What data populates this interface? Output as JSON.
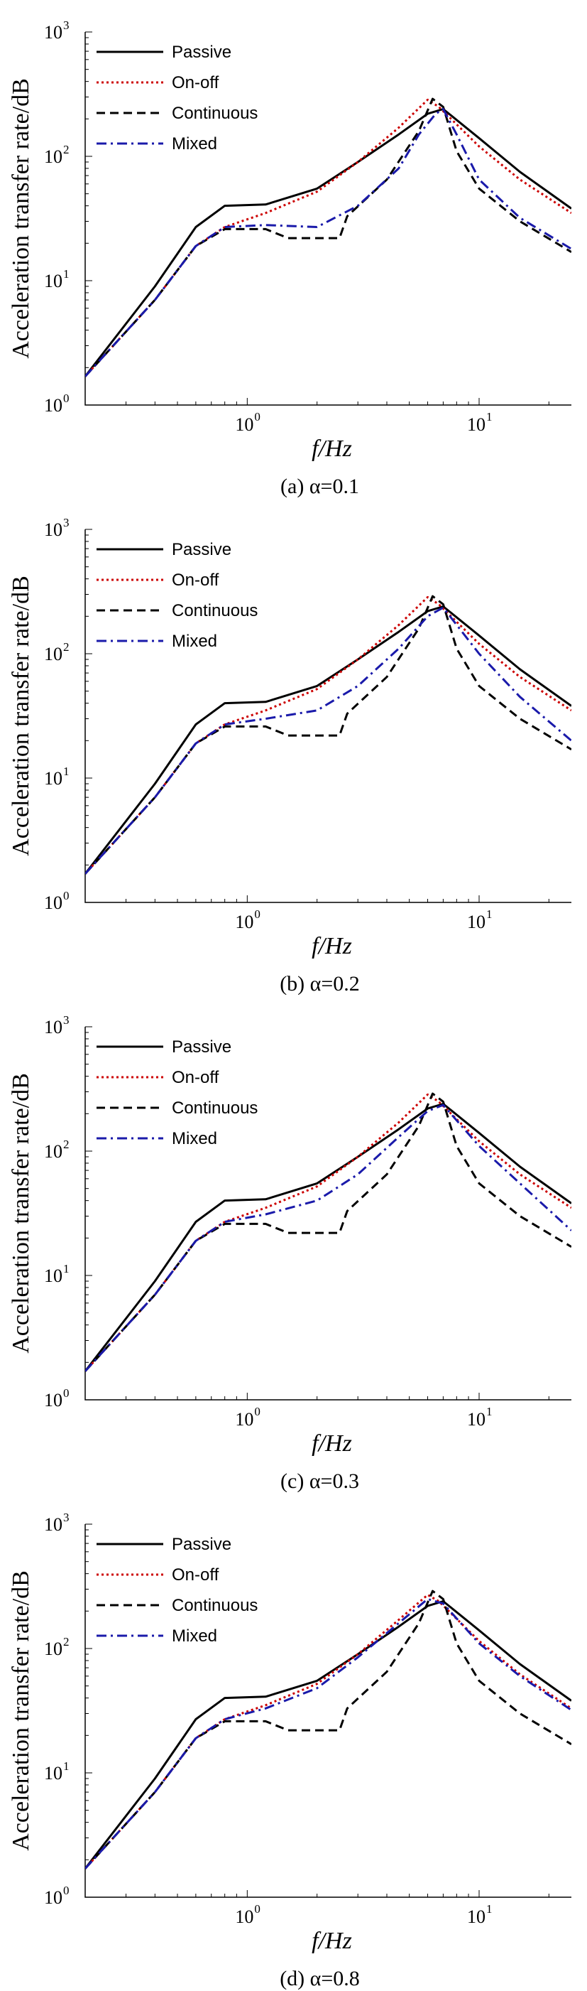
{
  "chart_data": [
    {
      "type": "line",
      "panel_caption": "(a) α=0.1",
      "xlabel": "f/Hz",
      "ylabel": "Acceleration transfer rate/dB",
      "xscale": "log",
      "yscale": "log",
      "xlim": [
        0.2,
        25
      ],
      "ylim": [
        1,
        1000
      ],
      "xtick_labels": [
        "10",
        "10"
      ],
      "xtick_exponents": [
        "0",
        "1"
      ],
      "ytick_labels": [
        "10",
        "10",
        "10",
        "10"
      ],
      "ytick_exponents": [
        "0",
        "1",
        "2",
        "3"
      ],
      "legend_position": "top-left",
      "series": [
        {
          "name": "Passive",
          "color": "#000000",
          "dash": "solid",
          "x": [
            0.2,
            0.4,
            0.6,
            0.8,
            1.2,
            2,
            3,
            4.5,
            6,
            7,
            10,
            15,
            25
          ],
          "y": [
            1.7,
            9,
            27,
            40,
            41,
            55,
            90,
            150,
            220,
            240,
            140,
            75,
            38
          ]
        },
        {
          "name": "On-off",
          "color": "#cc0000",
          "dash": "dotted",
          "x": [
            0.2,
            0.4,
            0.6,
            0.8,
            1.2,
            2,
            3,
            4.5,
            6,
            6.7,
            10,
            15,
            25
          ],
          "y": [
            1.7,
            7,
            19,
            27,
            35,
            52,
            90,
            170,
            285,
            250,
            120,
            65,
            35
          ]
        },
        {
          "name": "Continuous",
          "color": "#000000",
          "dash": "dashed",
          "x": [
            0.2,
            0.4,
            0.6,
            0.8,
            1.2,
            1.5,
            2.5,
            2.7,
            4,
            5.5,
            6.3,
            7,
            8,
            10,
            15,
            25
          ],
          "y": [
            1.7,
            7,
            19,
            26,
            26,
            22,
            22,
            33,
            65,
            160,
            290,
            250,
            110,
            55,
            30,
            17
          ]
        },
        {
          "name": "Mixed",
          "color": "#1a1aaa",
          "dash": "dashdot",
          "x": [
            0.2,
            0.4,
            0.6,
            0.8,
            1.2,
            2,
            3,
            4.5,
            5.5,
            6.5,
            7,
            8,
            10,
            15,
            25
          ],
          "y": [
            1.7,
            7,
            19,
            27,
            28,
            27,
            40,
            80,
            150,
            220,
            240,
            150,
            65,
            32,
            18
          ]
        }
      ]
    },
    {
      "type": "line",
      "panel_caption": "(b) α=0.2",
      "xlabel": "f/Hz",
      "ylabel": "Acceleration transfer rate/dB",
      "xscale": "log",
      "yscale": "log",
      "xlim": [
        0.2,
        25
      ],
      "ylim": [
        1,
        1000
      ],
      "xtick_labels": [
        "10",
        "10"
      ],
      "xtick_exponents": [
        "0",
        "1"
      ],
      "ytick_labels": [
        "10",
        "10",
        "10",
        "10"
      ],
      "ytick_exponents": [
        "0",
        "1",
        "2",
        "3"
      ],
      "legend_position": "top-left",
      "series": [
        {
          "name": "Passive",
          "color": "#000000",
          "dash": "solid",
          "x": [
            0.2,
            0.4,
            0.6,
            0.8,
            1.2,
            2,
            3,
            4.5,
            6,
            7,
            10,
            15,
            25
          ],
          "y": [
            1.7,
            9,
            27,
            40,
            41,
            55,
            90,
            150,
            220,
            240,
            140,
            75,
            38
          ]
        },
        {
          "name": "On-off",
          "color": "#cc0000",
          "dash": "dotted",
          "x": [
            0.2,
            0.4,
            0.6,
            0.8,
            1.2,
            2,
            3,
            4.5,
            6,
            6.7,
            10,
            15,
            25
          ],
          "y": [
            1.7,
            7,
            19,
            27,
            35,
            52,
            90,
            170,
            285,
            250,
            120,
            65,
            35
          ]
        },
        {
          "name": "Continuous",
          "color": "#000000",
          "dash": "dashed",
          "x": [
            0.2,
            0.4,
            0.6,
            0.8,
            1.2,
            1.5,
            2.5,
            2.7,
            4,
            5.5,
            6.3,
            7,
            8,
            10,
            15,
            25
          ],
          "y": [
            1.7,
            7,
            19,
            26,
            26,
            22,
            22,
            33,
            65,
            160,
            290,
            250,
            110,
            55,
            30,
            17
          ]
        },
        {
          "name": "Mixed",
          "color": "#1a1aaa",
          "dash": "dashdot",
          "x": [
            0.2,
            0.4,
            0.6,
            0.8,
            1.2,
            2,
            3,
            4.5,
            6,
            7,
            10,
            15,
            25
          ],
          "y": [
            1.7,
            7,
            19,
            27,
            30,
            35,
            55,
            110,
            200,
            235,
            100,
            45,
            20
          ]
        }
      ]
    },
    {
      "type": "line",
      "panel_caption": "(c) α=0.3",
      "xlabel": "f/Hz",
      "ylabel": "Acceleration transfer rate/dB",
      "xscale": "log",
      "yscale": "log",
      "xlim": [
        0.2,
        25
      ],
      "ylim": [
        1,
        1000
      ],
      "xtick_labels": [
        "10",
        "10"
      ],
      "xtick_exponents": [
        "0",
        "1"
      ],
      "ytick_labels": [
        "10",
        "10",
        "10",
        "10"
      ],
      "ytick_exponents": [
        "0",
        "1",
        "2",
        "3"
      ],
      "legend_position": "top-left",
      "series": [
        {
          "name": "Passive",
          "color": "#000000",
          "dash": "solid",
          "x": [
            0.2,
            0.4,
            0.6,
            0.8,
            1.2,
            2,
            3,
            4.5,
            6,
            7,
            10,
            15,
            25
          ],
          "y": [
            1.7,
            9,
            27,
            40,
            41,
            55,
            90,
            150,
            220,
            240,
            140,
            75,
            38
          ]
        },
        {
          "name": "On-off",
          "color": "#cc0000",
          "dash": "dotted",
          "x": [
            0.2,
            0.4,
            0.6,
            0.8,
            1.2,
            2,
            3,
            4.5,
            6,
            6.7,
            10,
            15,
            25
          ],
          "y": [
            1.7,
            7,
            19,
            27,
            35,
            52,
            90,
            170,
            285,
            250,
            120,
            65,
            35
          ]
        },
        {
          "name": "Continuous",
          "color": "#000000",
          "dash": "dashed",
          "x": [
            0.2,
            0.4,
            0.6,
            0.8,
            1.2,
            1.5,
            2.5,
            2.7,
            4,
            5.5,
            6.3,
            7,
            8,
            10,
            15,
            25
          ],
          "y": [
            1.7,
            7,
            19,
            26,
            26,
            22,
            22,
            33,
            65,
            160,
            290,
            250,
            110,
            55,
            30,
            17
          ]
        },
        {
          "name": "Mixed",
          "color": "#1a1aaa",
          "dash": "dashdot",
          "x": [
            0.2,
            0.4,
            0.6,
            0.8,
            1.2,
            2,
            3,
            4.5,
            6,
            7,
            10,
            15,
            25
          ],
          "y": [
            1.7,
            7,
            19,
            27,
            31,
            40,
            65,
            130,
            210,
            235,
            110,
            55,
            23
          ]
        }
      ]
    },
    {
      "type": "line",
      "panel_caption": "(d) α=0.8",
      "xlabel": "f/Hz",
      "ylabel": "Acceleration transfer rate/dB",
      "xscale": "log",
      "yscale": "log",
      "xlim": [
        0.2,
        25
      ],
      "ylim": [
        1,
        1000
      ],
      "xtick_labels": [
        "10",
        "10"
      ],
      "xtick_exponents": [
        "0",
        "1"
      ],
      "ytick_labels": [
        "10",
        "10",
        "10",
        "10"
      ],
      "ytick_exponents": [
        "0",
        "1",
        "2",
        "3"
      ],
      "legend_position": "top-left",
      "series": [
        {
          "name": "Passive",
          "color": "#000000",
          "dash": "solid",
          "x": [
            0.2,
            0.4,
            0.6,
            0.8,
            1.2,
            2,
            3,
            4.5,
            6,
            7,
            10,
            15,
            25
          ],
          "y": [
            1.7,
            9,
            27,
            40,
            41,
            55,
            90,
            150,
            220,
            240,
            140,
            75,
            38
          ]
        },
        {
          "name": "On-off",
          "color": "#cc0000",
          "dash": "dotted",
          "x": [
            0.2,
            0.4,
            0.6,
            0.8,
            1.2,
            2,
            3,
            4.5,
            6,
            6.7,
            10,
            15,
            25
          ],
          "y": [
            1.7,
            7,
            19,
            27,
            35,
            52,
            90,
            170,
            270,
            240,
            115,
            62,
            33
          ]
        },
        {
          "name": "Continuous",
          "color": "#000000",
          "dash": "dashed",
          "x": [
            0.2,
            0.4,
            0.6,
            0.8,
            1.2,
            1.5,
            2.5,
            2.7,
            4,
            5.5,
            6.3,
            7,
            8,
            10,
            15,
            25
          ],
          "y": [
            1.7,
            7,
            19,
            26,
            26,
            22,
            22,
            33,
            65,
            160,
            290,
            250,
            110,
            55,
            30,
            17
          ]
        },
        {
          "name": "Mixed",
          "color": "#1a1aaa",
          "dash": "dashdot",
          "x": [
            0.2,
            0.4,
            0.6,
            0.8,
            1.2,
            2,
            3,
            4.5,
            6,
            7,
            10,
            15,
            25
          ],
          "y": [
            1.7,
            7,
            19,
            27,
            33,
            48,
            85,
            160,
            250,
            230,
            110,
            60,
            32
          ]
        }
      ]
    }
  ]
}
